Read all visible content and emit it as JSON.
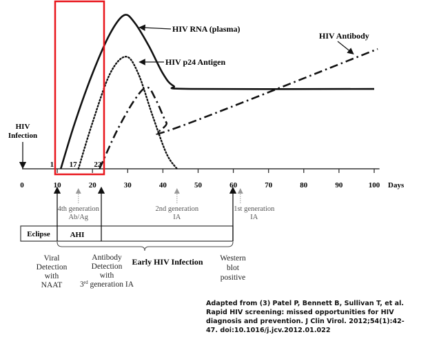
{
  "chart_data": {
    "type": "line",
    "xlabel": "Days",
    "x_ticks": [
      0,
      10,
      20,
      30,
      40,
      50,
      60,
      70,
      80,
      90,
      100
    ],
    "xlim": [
      0,
      100
    ],
    "ylim": [
      0,
      1
    ],
    "ylabel": "",
    "highlight_range_days": [
      9.4,
      23.3
    ],
    "highlight_color": "#e8151b",
    "series": [
      {
        "name": "HIV RNA (plasma)",
        "style": "solid",
        "points": [
          [
            11,
            0
          ],
          [
            15,
            0.3
          ],
          [
            20,
            0.62
          ],
          [
            25,
            0.88
          ],
          [
            29,
            1
          ],
          [
            32,
            0.95
          ],
          [
            36,
            0.8
          ],
          [
            40,
            0.62
          ],
          [
            43,
            0.54
          ],
          [
            48,
            0.52
          ],
          [
            100,
            0.52
          ]
        ]
      },
      {
        "name": "HIV p24 Antigen",
        "style": "dotted",
        "points": [
          [
            16,
            0
          ],
          [
            20,
            0.3
          ],
          [
            25,
            0.62
          ],
          [
            29.5,
            0.73
          ],
          [
            33,
            0.62
          ],
          [
            37,
            0.35
          ],
          [
            41,
            0.1
          ],
          [
            44,
            0
          ]
        ]
      },
      {
        "name": "HIV Antibody",
        "style": "dashdot",
        "points": [
          [
            22,
            0
          ],
          [
            27,
            0.25
          ],
          [
            32,
            0.45
          ],
          [
            35.5,
            0.53
          ],
          [
            38,
            0.45
          ],
          [
            41,
            0.3
          ],
          [
            43,
            0.26
          ],
          [
            101,
            0.78
          ]
        ]
      }
    ],
    "day_markers": [
      {
        "label": "1",
        "day": 8.5
      },
      {
        "label": "17",
        "day": 14.5
      },
      {
        "label": "22",
        "day": 21.5
      }
    ],
    "infection_label": [
      "HIV",
      "Infection"
    ]
  },
  "tests": [
    {
      "lines": [
        "4th generation",
        "Ab/Ag"
      ],
      "day": 16,
      "gray": true
    },
    {
      "lines": [
        "2nd generation",
        "IA"
      ],
      "day": 44,
      "gray": true
    },
    {
      "lines": [
        "1st generation",
        "IA"
      ],
      "day": 62,
      "gray": true
    }
  ],
  "phases": {
    "eclipse": "Eclipse",
    "ahi": "AHI",
    "early": "Early HIV Infection"
  },
  "detections": [
    {
      "lines": [
        "Viral",
        "Detection",
        "with",
        "NAAT"
      ]
    },
    {
      "lines": [
        "Antibody",
        "Detection",
        "with"
      ],
      "last_sup": "rd",
      "last_pre": "3",
      "last_post": " generation IA"
    },
    {
      "lines": [
        "Western",
        "blot",
        "positive"
      ]
    }
  ],
  "citation": "Adapted from (3) Patel P, Bennett B, Sullivan T, et al. Rapid HIV screening: missed opportunities for HIV diagnosis and prevention. J Clin Virol. 2012;54(1):42-47. doi:10.1016/j.jcv.2012.01.022"
}
